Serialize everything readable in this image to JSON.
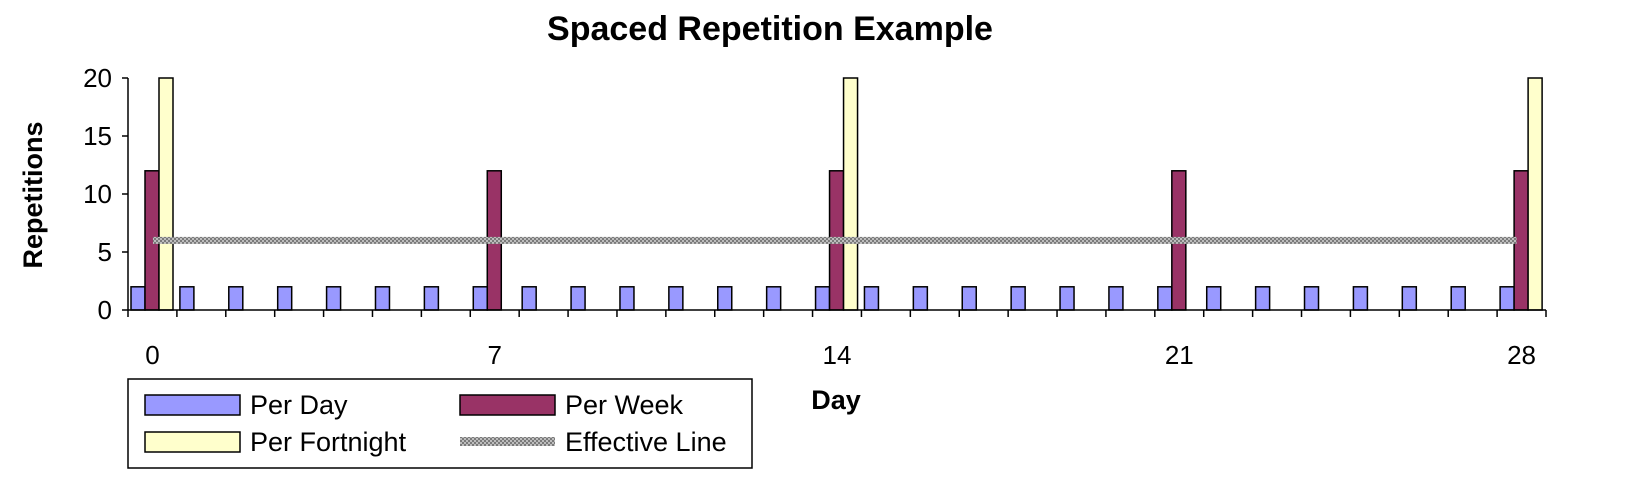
{
  "chart_data": {
    "type": "bar",
    "title": "Spaced Repetition Example",
    "xlabel": "Day",
    "ylabel": "Repetitions",
    "xlim": [
      0,
      28
    ],
    "ylim": [
      0,
      20
    ],
    "x_ticks": [
      0,
      7,
      14,
      21,
      28
    ],
    "y_ticks": [
      0,
      5,
      10,
      15,
      20
    ],
    "days": [
      0,
      1,
      2,
      3,
      4,
      5,
      6,
      7,
      8,
      9,
      10,
      11,
      12,
      13,
      14,
      15,
      16,
      17,
      18,
      19,
      20,
      21,
      22,
      23,
      24,
      25,
      26,
      27,
      28
    ],
    "series": [
      {
        "name": "Per Day",
        "color": "#9999ff",
        "values": [
          2,
          2,
          2,
          2,
          2,
          2,
          2,
          2,
          2,
          2,
          2,
          2,
          2,
          2,
          2,
          2,
          2,
          2,
          2,
          2,
          2,
          2,
          2,
          2,
          2,
          2,
          2,
          2,
          2
        ]
      },
      {
        "name": "Per Week",
        "color": "#993366",
        "values": [
          12,
          0,
          0,
          0,
          0,
          0,
          0,
          12,
          0,
          0,
          0,
          0,
          0,
          0,
          12,
          0,
          0,
          0,
          0,
          0,
          0,
          12,
          0,
          0,
          0,
          0,
          0,
          0,
          12
        ]
      },
      {
        "name": "Per Fortnight",
        "color": "#ffffcc",
        "values": [
          20,
          0,
          0,
          0,
          0,
          0,
          0,
          0,
          0,
          0,
          0,
          0,
          0,
          0,
          20,
          0,
          0,
          0,
          0,
          0,
          0,
          0,
          0,
          0,
          0,
          0,
          0,
          0,
          20
        ]
      }
    ],
    "line": {
      "name": "Effective Line",
      "color": "#999999",
      "value": 6
    },
    "legend_position": "bottom-left",
    "grid": false
  }
}
